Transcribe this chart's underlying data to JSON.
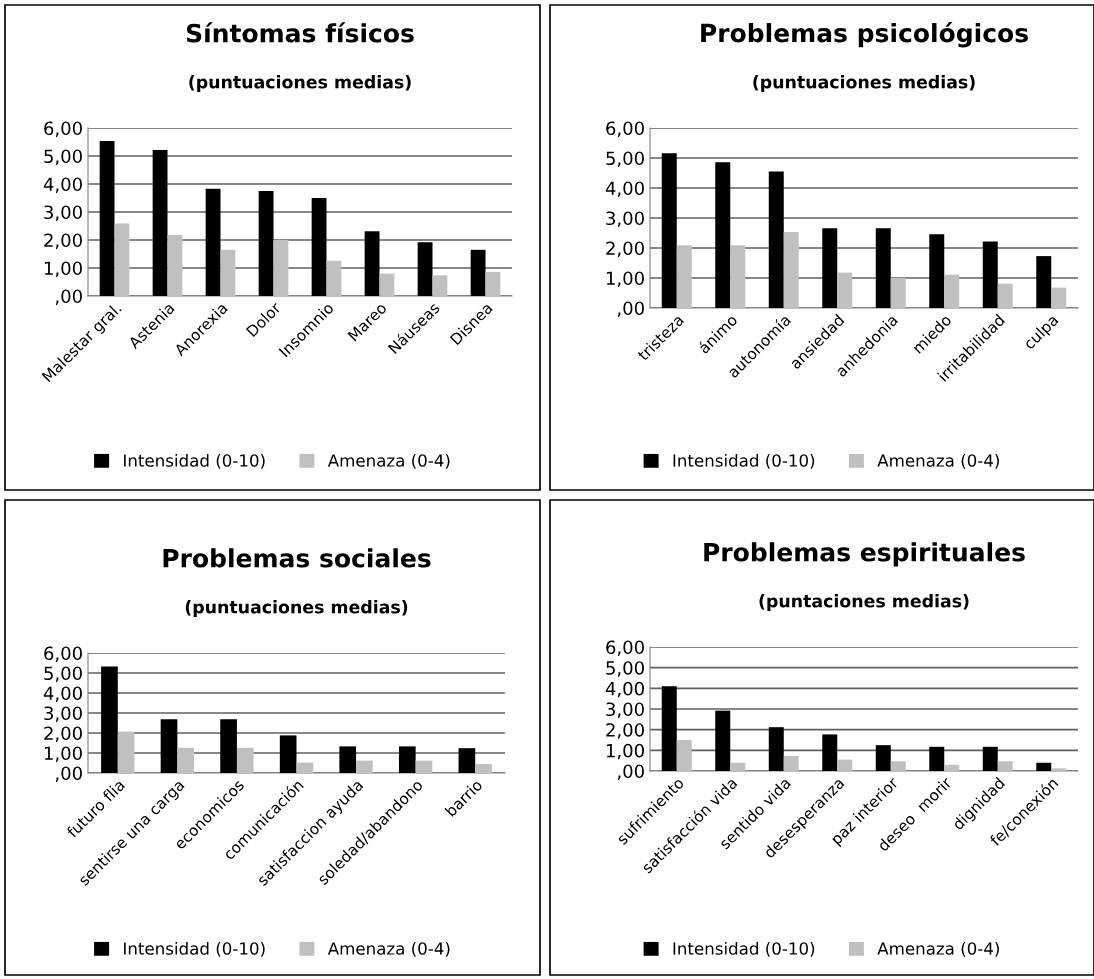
{
  "chart_data": [
    {
      "type": "bar",
      "title": "Síntomas físicos",
      "subtitle": "(puntuaciones medias)",
      "categories": [
        "Malestar gral.",
        "Astenia",
        "Anorexia",
        "Dolor",
        "Insomnio",
        "Mareo",
        "Náuseas",
        "Disnea"
      ],
      "series": [
        {
          "name": "Intensidad (0-10)",
          "color": "#000000",
          "values": [
            5.54,
            5.21,
            3.83,
            3.75,
            3.5,
            2.31,
            1.92,
            1.65
          ]
        },
        {
          "name": "Amenaza (0-4)",
          "color": "#c0c0c0",
          "values": [
            2.59,
            2.18,
            1.65,
            2.0,
            1.26,
            0.8,
            0.74,
            0.86
          ]
        }
      ],
      "ylim": [
        0,
        6
      ],
      "yticks": [
        {
          "value": 0,
          "label": ",00"
        },
        {
          "value": 1,
          "label": "1,00"
        },
        {
          "value": 2,
          "label": "2,00"
        },
        {
          "value": 3,
          "label": "3,00"
        },
        {
          "value": 4,
          "label": "4,00"
        },
        {
          "value": 5,
          "label": "5,00"
        },
        {
          "value": 6,
          "label": "6,00"
        }
      ],
      "grid": "y",
      "legend": "bottom"
    },
    {
      "type": "bar",
      "title": "Problemas psicológicos",
      "subtitle": "(puntuaciones medias)",
      "categories": [
        "tristeza",
        "ánimo",
        "autonomía",
        "ansiedad",
        "anhedonia",
        "miedo",
        "irritabilidad",
        "culpa"
      ],
      "series": [
        {
          "name": "Intensidad (0-10)",
          "color": "#000000",
          "values": [
            5.16,
            4.86,
            4.55,
            2.66,
            2.66,
            2.46,
            2.22,
            1.73
          ]
        },
        {
          "name": "Amenaza (0-4)",
          "color": "#c0c0c0",
          "values": [
            2.09,
            2.09,
            2.53,
            1.18,
            1.0,
            1.11,
            0.81,
            0.68
          ]
        }
      ],
      "ylim": [
        0,
        6
      ],
      "yticks": [
        {
          "value": 0,
          "label": ",00"
        },
        {
          "value": 1,
          "label": "1,00"
        },
        {
          "value": 2,
          "label": "2,00"
        },
        {
          "value": 3,
          "label": "3,00"
        },
        {
          "value": 4,
          "label": "4,00"
        },
        {
          "value": 5,
          "label": "5,00"
        },
        {
          "value": 6,
          "label": "6,00"
        }
      ],
      "grid": "y",
      "legend": "bottom"
    },
    {
      "type": "bar",
      "title": "Problemas sociales",
      "subtitle": "(puntuaciones medias)",
      "categories": [
        "futuro flia",
        "sentirse una carga",
        "economicos",
        "comunicación",
        "satisfaccion ayuda",
        "soledad/abandono",
        "barrio"
      ],
      "series": [
        {
          "name": "Intensidad (0-10)",
          "color": "#000000",
          "values": [
            5.33,
            2.69,
            2.69,
            1.88,
            1.33,
            1.33,
            1.24
          ]
        },
        {
          "name": "Amenaza (0-4)",
          "color": "#c0c0c0",
          "values": [
            2.07,
            1.26,
            1.26,
            0.52,
            0.62,
            0.62,
            0.45
          ]
        }
      ],
      "ylim": [
        0,
        6
      ],
      "yticks": [
        {
          "value": 0,
          "label": ",00"
        },
        {
          "value": 1,
          "label": "1,00"
        },
        {
          "value": 2,
          "label": "2,00"
        },
        {
          "value": 3,
          "label": "3,00"
        },
        {
          "value": 4,
          "label": "4,00"
        },
        {
          "value": 5,
          "label": "5,00"
        },
        {
          "value": 6,
          "label": "6,00"
        }
      ],
      "grid": "y",
      "legend": "bottom"
    },
    {
      "type": "bar",
      "title": "Problemas espirituales",
      "subtitle": "(puntaciones medias)",
      "categories": [
        "sufrimiento",
        "satisfacción vida",
        "sentido vida",
        "desesperanza",
        "paz interior",
        "deseo  morir",
        "dignidad",
        "fe/conexión"
      ],
      "series": [
        {
          "name": "Intensidad (0-10)",
          "color": "#000000",
          "values": [
            4.1,
            2.92,
            2.12,
            1.77,
            1.25,
            1.17,
            1.17,
            0.4
          ]
        },
        {
          "name": "Amenaza (0-4)",
          "color": "#c0c0c0",
          "values": [
            1.5,
            0.4,
            0.73,
            0.55,
            0.47,
            0.3,
            0.47,
            0.13
          ]
        }
      ],
      "ylim": [
        0,
        6
      ],
      "yticks": [
        {
          "value": 0,
          "label": ",00"
        },
        {
          "value": 1,
          "label": "1,00"
        },
        {
          "value": 2,
          "label": "2,00"
        },
        {
          "value": 3,
          "label": "3,00"
        },
        {
          "value": 4,
          "label": "4,00"
        },
        {
          "value": 5,
          "label": "5,00"
        },
        {
          "value": 6,
          "label": "6,00"
        }
      ],
      "grid": "y",
      "legend": "bottom"
    }
  ]
}
